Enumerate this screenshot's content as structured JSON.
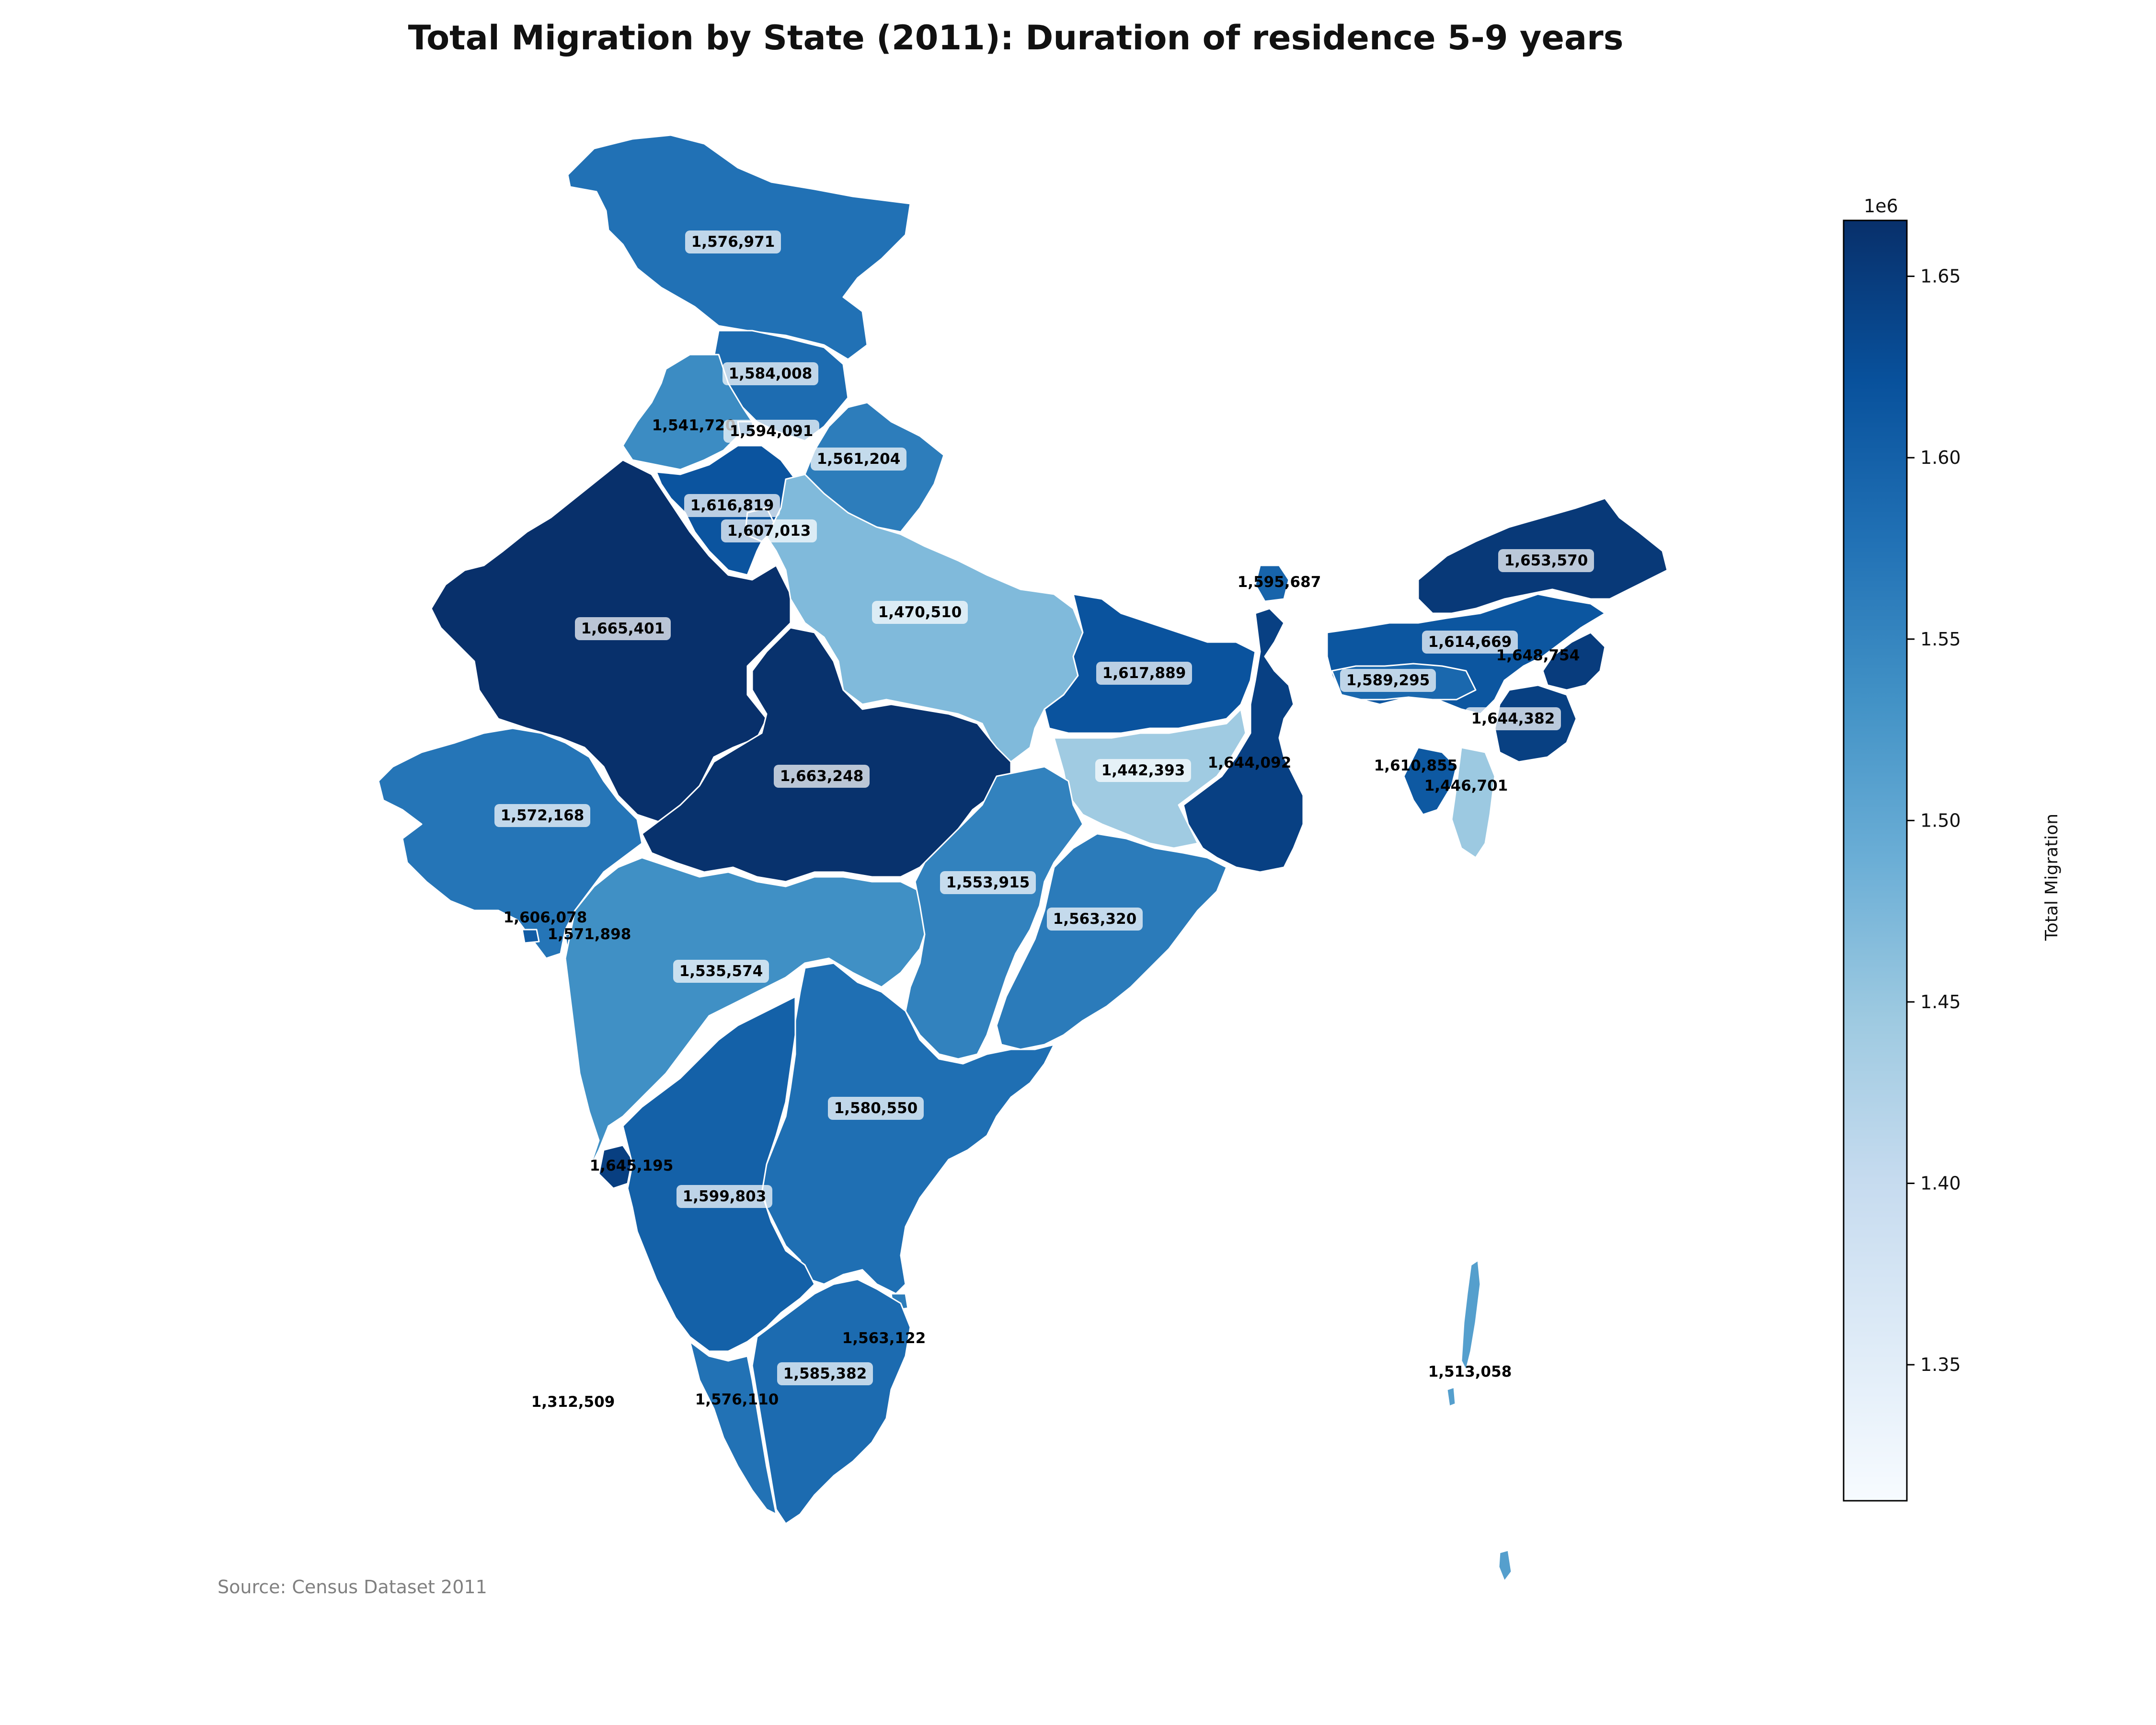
{
  "title": "Total Migration by State (2011): Duration of residence 5-9 years",
  "source": "Source: Census Dataset 2011",
  "colorbar": {
    "label": "Total Migration",
    "exponent_label": "1e6",
    "min": 1312509,
    "max": 1665401,
    "ticks": [
      1.35,
      1.4,
      1.45,
      1.5,
      1.55,
      1.6,
      1.65
    ],
    "tick_labels": [
      "1.35",
      "1.40",
      "1.45",
      "1.50",
      "1.55",
      "1.60",
      "1.65"
    ],
    "colormap": "Blues"
  },
  "chart_data": {
    "type": "choropleth",
    "title": "Total Migration by State (2011): Duration of residence 5-9 years",
    "value_label": "Total Migration",
    "regions": [
      {
        "label": "1,576,971",
        "value": 1576971
      },
      {
        "label": "1,584,008",
        "value": 1584008
      },
      {
        "label": "1,541,720",
        "value": 1541720
      },
      {
        "label": "1,594,091",
        "value": 1594091
      },
      {
        "label": "1,561,204",
        "value": 1561204
      },
      {
        "label": "1,616,819",
        "value": 1616819
      },
      {
        "label": "1,607,013",
        "value": 1607013
      },
      {
        "label": "1,665,401",
        "value": 1665401
      },
      {
        "label": "1,470,510",
        "value": 1470510
      },
      {
        "label": "1,617,889",
        "value": 1617889
      },
      {
        "label": "1,595,687",
        "value": 1595687
      },
      {
        "label": "1,653,570",
        "value": 1653570
      },
      {
        "label": "1,614,669",
        "value": 1614669
      },
      {
        "label": "1,648,754",
        "value": 1648754
      },
      {
        "label": "1,589,295",
        "value": 1589295
      },
      {
        "label": "1,644,382",
        "value": 1644382
      },
      {
        "label": "1,610,855",
        "value": 1610855
      },
      {
        "label": "1,446,701",
        "value": 1446701
      },
      {
        "label": "1,442,393",
        "value": 1442393
      },
      {
        "label": "1,644,092",
        "value": 1644092
      },
      {
        "label": "1,663,248",
        "value": 1663248
      },
      {
        "label": "1,572,168",
        "value": 1572168
      },
      {
        "label": "1,606,078",
        "value": 1606078
      },
      {
        "label": "1,571,898",
        "value": 1571898
      },
      {
        "label": "1,535,574",
        "value": 1535574
      },
      {
        "label": "1,553,915",
        "value": 1553915
      },
      {
        "label": "1,563,320",
        "value": 1563320
      },
      {
        "label": "1,580,550",
        "value": 1580550
      },
      {
        "label": "1,645,195",
        "value": 1645195
      },
      {
        "label": "1,599,803",
        "value": 1599803
      },
      {
        "label": "1,563,122",
        "value": 1563122
      },
      {
        "label": "1,585,382",
        "value": 1585382
      },
      {
        "label": "1,576,110",
        "value": 1576110
      },
      {
        "label": "1,312,509",
        "value": 1312509
      },
      {
        "label": "1,513,058",
        "value": 1513058
      }
    ]
  }
}
